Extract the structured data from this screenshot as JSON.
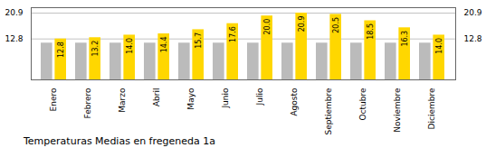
{
  "chart_data": {
    "type": "bar",
    "title": "Temperaturas Medias en fregeneda 1a",
    "categories": [
      "Enero",
      "Febrero",
      "Marzo",
      "Abril",
      "Mayo",
      "Junio",
      "Julio",
      "Agosto",
      "Septiembre",
      "Octubre",
      "Noviembre",
      "Diciembre"
    ],
    "series": [
      {
        "color": "#BBBBBB",
        "values": [
          11.5,
          11.5,
          11.5,
          11.5,
          11.5,
          11.5,
          11.5,
          11.5,
          11.5,
          11.5,
          11.5,
          11.5
        ]
      },
      {
        "color": "#FFD700",
        "values": [
          12.8,
          13.2,
          14.0,
          14.4,
          15.7,
          17.6,
          20.0,
          20.9,
          20.5,
          18.5,
          16.3,
          14.0
        ],
        "data_labels": true,
        "value_labels": [
          "12.8",
          "13.2",
          "14.0",
          "14.4",
          "15.7",
          "17.6",
          "20.0",
          "20.9",
          "20.5",
          "18.5",
          "16.3",
          "14.0"
        ]
      }
    ],
    "ylim": [
      0,
      22.6
    ],
    "yticks": [
      12.8,
      20.9
    ],
    "grid": true
  }
}
